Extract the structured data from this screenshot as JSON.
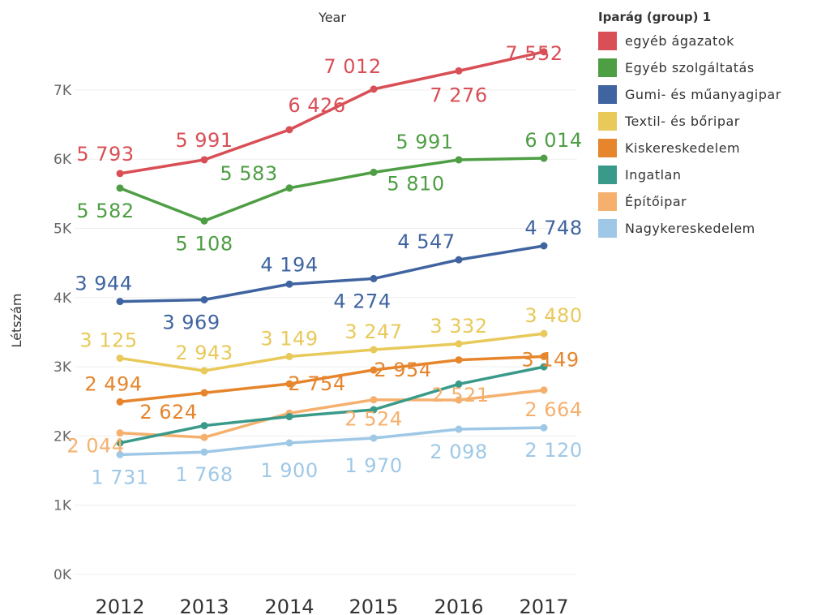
{
  "chart_data": {
    "type": "line",
    "title": "",
    "column_header": "Year",
    "xlabel": "",
    "ylabel": "Létszám",
    "ylim": [
      0,
      7800
    ],
    "y_ticks": [
      0,
      1000,
      2000,
      3000,
      4000,
      5000,
      6000,
      7000
    ],
    "y_tick_labels": [
      "0K",
      "1K",
      "2K",
      "3K",
      "4K",
      "5K",
      "6K",
      "7K"
    ],
    "x": [
      "2012",
      "2013",
      "2014",
      "2015",
      "2016",
      "2017"
    ],
    "grid": true,
    "legend_title": "Iparág (group) 1",
    "legend_position": "right",
    "series": [
      {
        "name": "egyéb ágazatok",
        "color": "#d94f56",
        "values": [
          5793,
          5991,
          6426,
          7012,
          7276,
          7552
        ],
        "labels": [
          "5 793",
          "5 991",
          "6 426",
          "7 012",
          "7 276",
          "7 552"
        ]
      },
      {
        "name": "Egyéb szolgáltatás",
        "color": "#4e9e44",
        "values": [
          5582,
          5108,
          5583,
          5810,
          5991,
          6014
        ],
        "labels": [
          "5 582",
          "5 108",
          "5 583",
          "5 810",
          "5 991",
          "6 014"
        ]
      },
      {
        "name": "Gumi- és műanyagipar",
        "color": "#3f64a0",
        "values": [
          3944,
          3969,
          4194,
          4274,
          4547,
          4748
        ],
        "labels": [
          "3 944",
          "3 969",
          "4 194",
          "4 274",
          "4 547",
          "4 748"
        ]
      },
      {
        "name": "Textil- és bőripar",
        "color": "#e8c95a",
        "values": [
          3125,
          2943,
          3149,
          3247,
          3332,
          3480
        ],
        "labels": [
          "3 125",
          "2 943",
          "3 149",
          "3 247",
          "3 332",
          "3 480"
        ]
      },
      {
        "name": "Kiskereskedelem",
        "color": "#e6852c",
        "values": [
          2494,
          2624,
          2754,
          2954,
          3100,
          3149
        ],
        "labels": [
          "2 494",
          "2 624",
          "2 754",
          "2 954",
          "",
          "3 149"
        ]
      },
      {
        "name": "Ingatlan",
        "color": "#3a9a8a",
        "values": [
          1900,
          2150,
          2280,
          2380,
          2750,
          3000
        ],
        "labels": [
          "",
          "",
          "",
          "",
          "",
          ""
        ]
      },
      {
        "name": "Építőipar",
        "color": "#f5b06e",
        "values": [
          2044,
          1980,
          2330,
          2524,
          2521,
          2664
        ],
        "labels": [
          "2 044",
          "",
          "",
          "2 524",
          "2 521",
          "2 664"
        ]
      },
      {
        "name": "Nagykereskedelem",
        "color": "#9fc8e6",
        "values": [
          1731,
          1768,
          1900,
          1970,
          2098,
          2120
        ],
        "labels": [
          "1 731",
          "1 768",
          "1 900",
          "1 970",
          "2 098",
          "2 120"
        ]
      }
    ]
  }
}
